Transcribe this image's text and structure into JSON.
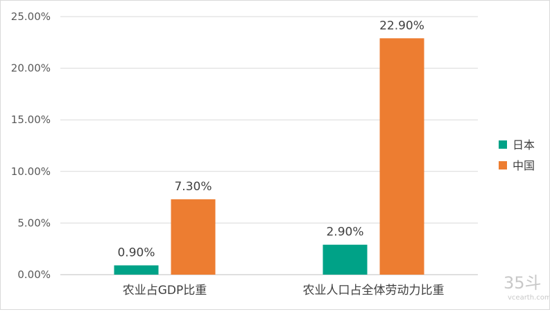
{
  "chart_data": {
    "type": "bar",
    "title": "",
    "xlabel": "",
    "ylabel": "",
    "categories": [
      "农业占GDP比重",
      "农业人口占全体劳动力比重"
    ],
    "series": [
      {
        "name": "日本",
        "color": "#00a287",
        "values": [
          0.9,
          2.9
        ],
        "labels": [
          "0.90%",
          "2.90%"
        ]
      },
      {
        "name": "中国",
        "color": "#ed7d31",
        "values": [
          7.3,
          22.9
        ],
        "labels": [
          "7.30%",
          "22.90%"
        ]
      }
    ],
    "ylim": [
      0,
      25
    ],
    "yticks": [
      0,
      5,
      10,
      15,
      20,
      25
    ],
    "ytick_labels": [
      "0.00%",
      "5.00%",
      "10.00%",
      "15.00%",
      "20.00%",
      "25.00%"
    ],
    "grid": true,
    "legend_position": "right"
  },
  "watermark": {
    "mark": "35斗",
    "site": "vcearth.com"
  }
}
